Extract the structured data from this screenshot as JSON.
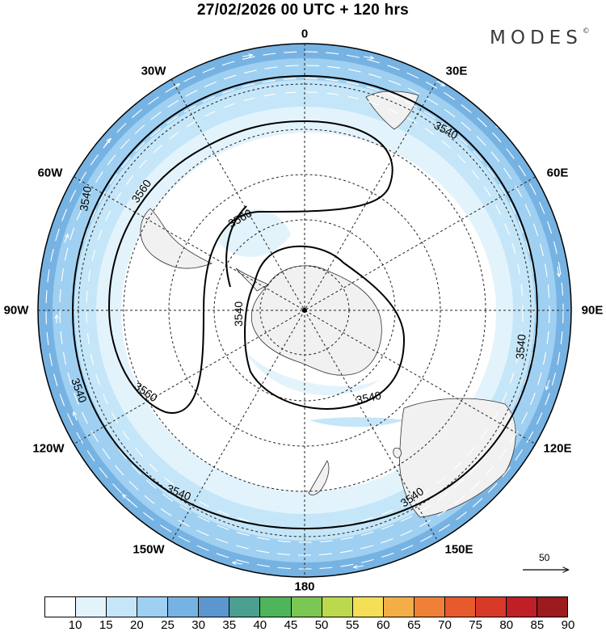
{
  "title": "27/02/2026  00 UTC  + 120 hrs",
  "brand": "MODES",
  "brand_mark": "©",
  "longitude_labels": {
    "n0": "0",
    "e30": "30E",
    "e60": "60E",
    "e90": "90E",
    "e120": "120E",
    "e150": "150E",
    "n180": "180",
    "w150": "150W",
    "w120": "120W",
    "w90": "90W",
    "w60": "60W",
    "w30": "30W"
  },
  "contour_labels": [
    "3540",
    "3560"
  ],
  "reference_vector": {
    "value": "50"
  },
  "colorbar": {
    "labels": [
      "10",
      "15",
      "20",
      "25",
      "30",
      "35",
      "40",
      "45",
      "50",
      "55",
      "60",
      "65",
      "70",
      "75",
      "80",
      "85",
      "90"
    ],
    "colors": [
      "#ffffff",
      "#e3f3fc",
      "#c4e6f8",
      "#9fd0f1",
      "#76b3e3",
      "#5b97ce",
      "#4b9f8f",
      "#4fb55a",
      "#7cc653",
      "#bcd94d",
      "#f4df56",
      "#f3ae48",
      "#ee8038",
      "#e65a2d",
      "#d83a2a",
      "#bf1f26",
      "#9b1b1f"
    ]
  }
}
